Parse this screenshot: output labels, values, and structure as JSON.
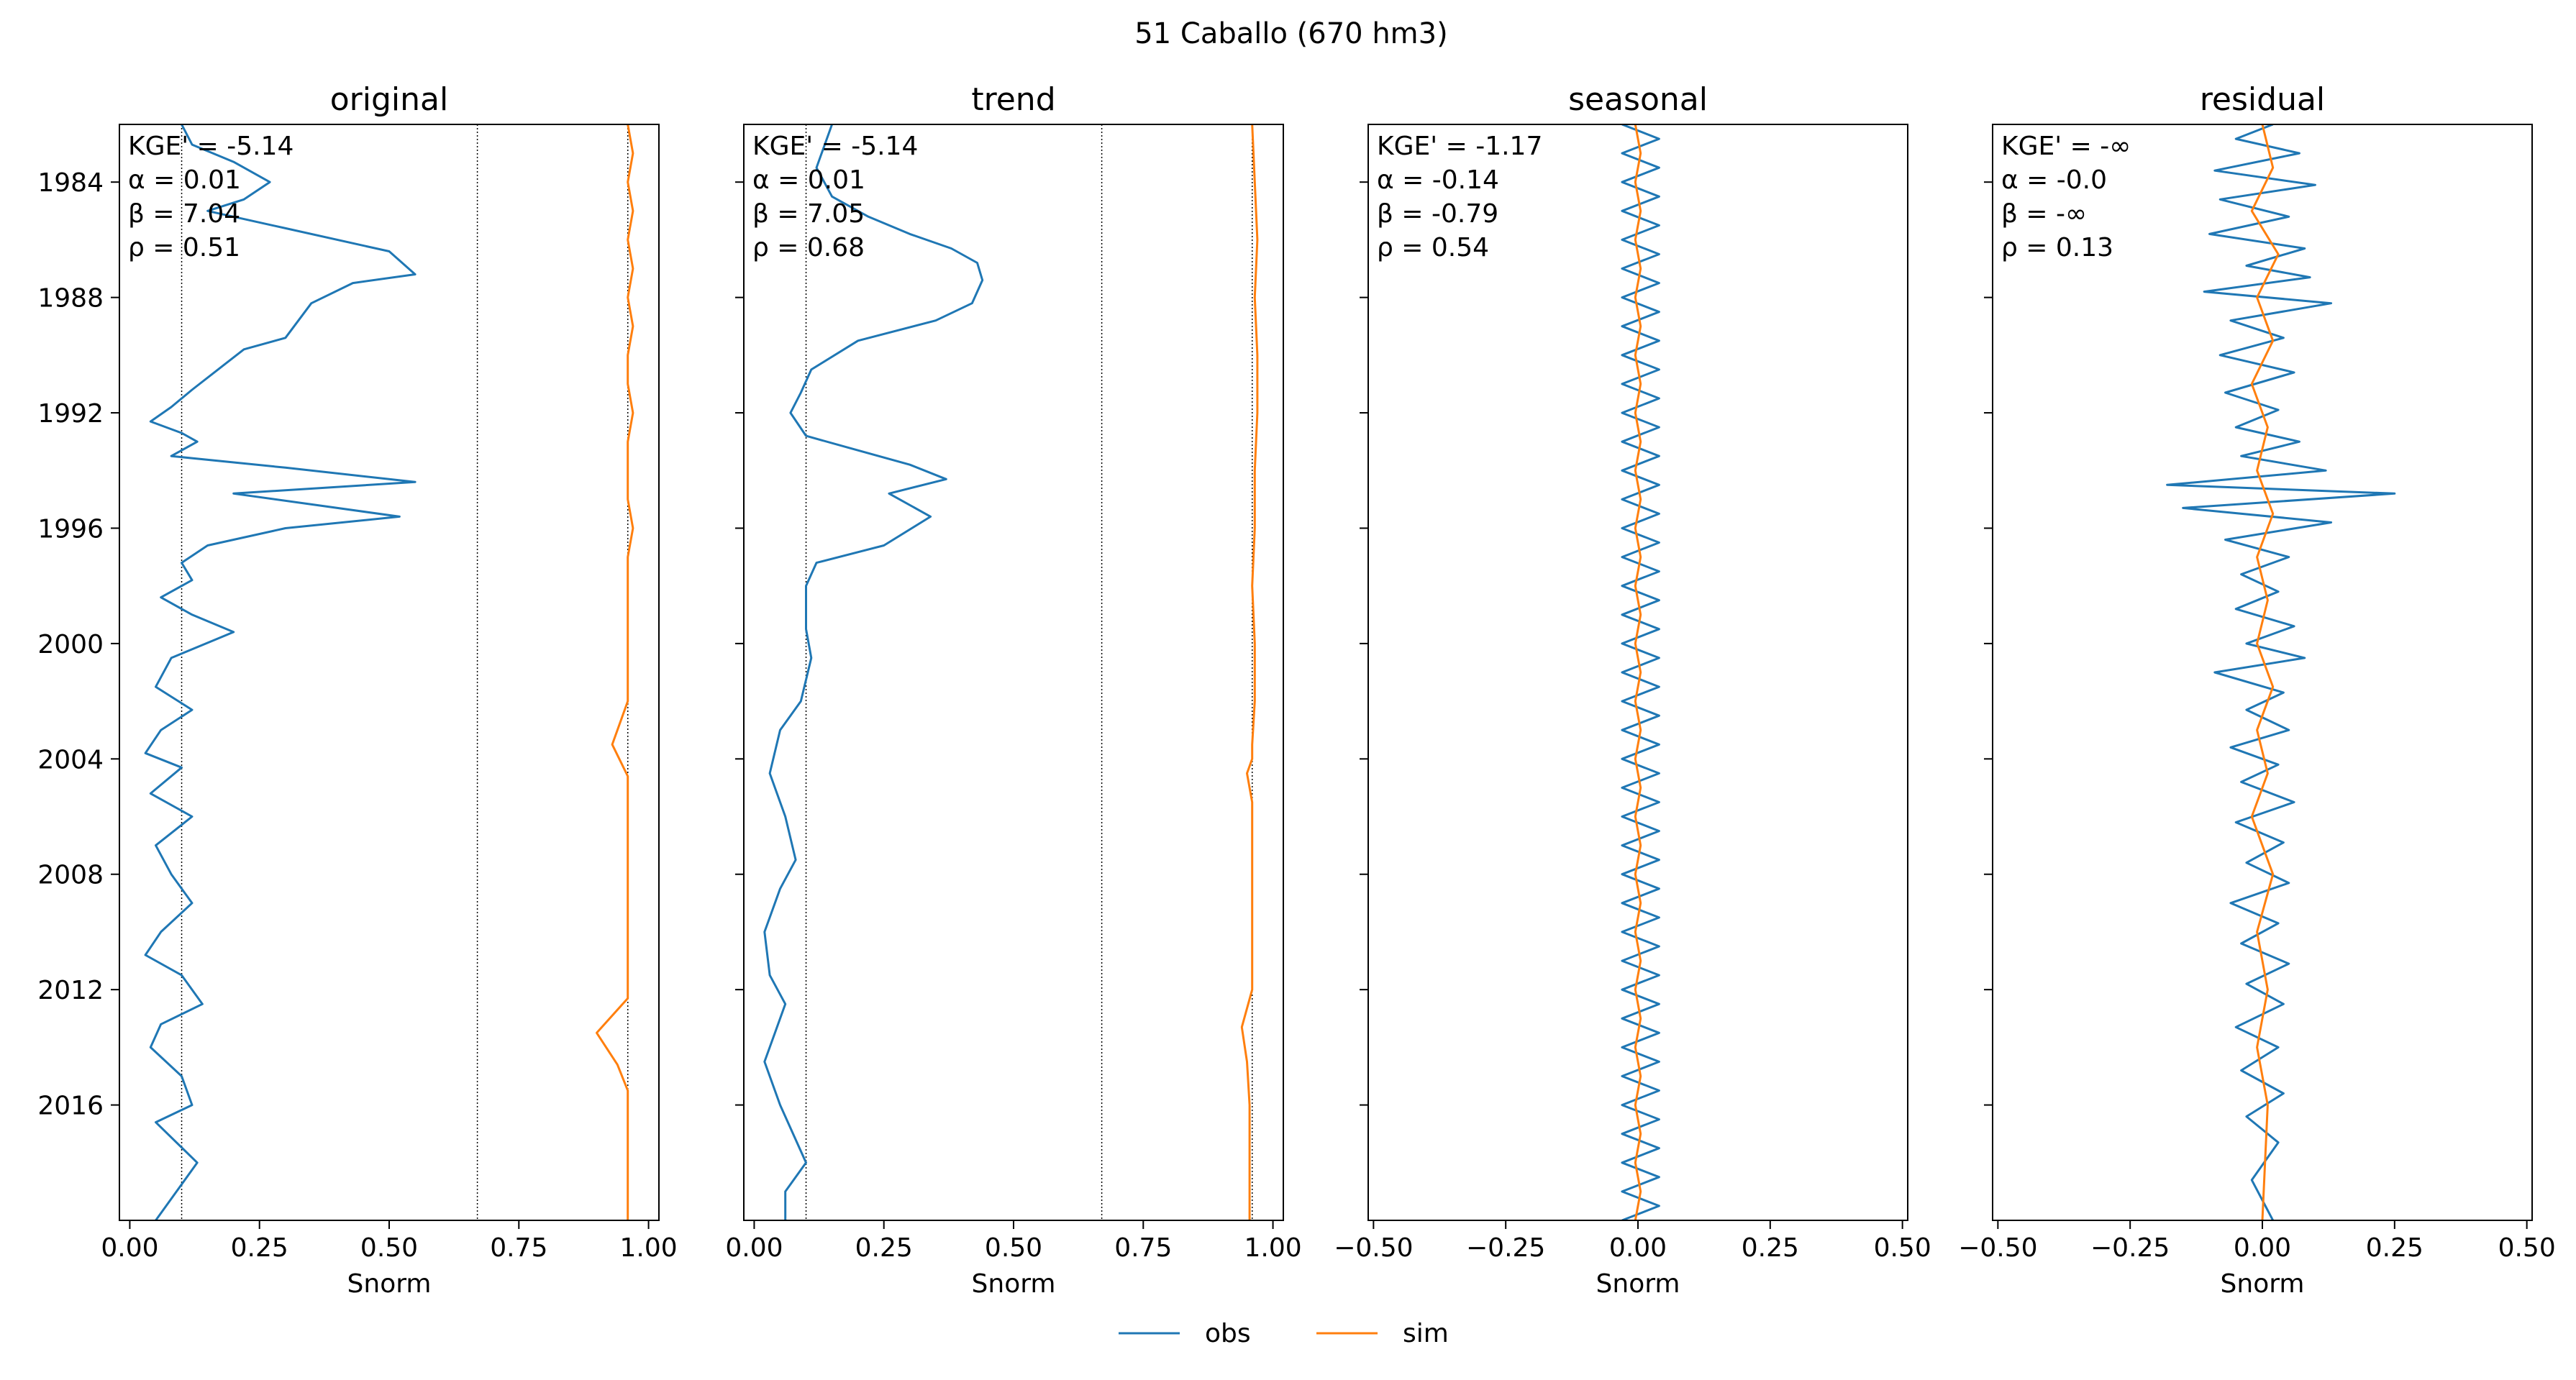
{
  "figure": {
    "title": "51  Caballo (670 hm3)",
    "legend": [
      {
        "label": "obs",
        "color": "#1f77b4"
      },
      {
        "label": "sim",
        "color": "#ff7f0e"
      }
    ],
    "colors": {
      "obs": "#1f77b4",
      "sim": "#ff7f0e",
      "obs_light": "#a9cbe3"
    }
  },
  "chart_data": [
    {
      "type": "line",
      "title": "original",
      "xlabel": "Snorm",
      "ylabel": "",
      "xlim": [
        -0.02,
        1.02
      ],
      "ylim": [
        1982.0,
        2020.0
      ],
      "xticks": [
        0.0,
        0.25,
        0.5,
        0.75,
        1.0
      ],
      "xtick_labels": [
        "0.00",
        "0.25",
        "0.50",
        "0.75",
        "1.00"
      ],
      "yticks": [
        1984,
        1988,
        1992,
        1996,
        2000,
        2004,
        2008,
        2012,
        2016
      ],
      "ytick_labels": [
        "1984",
        "1988",
        "1992",
        "1996",
        "2000",
        "2004",
        "2008",
        "2012",
        "2016"
      ],
      "reference_lines_x": [
        0.1,
        0.67,
        0.96
      ],
      "stats": [
        "KGE' = -5.14",
        "α = 0.01",
        "β = 7.04",
        "ρ = 0.51"
      ],
      "series": [
        {
          "name": "obs",
          "x": [
            0.1,
            0.12,
            0.2,
            0.27,
            0.22,
            0.15,
            0.3,
            0.5,
            0.55,
            0.43,
            0.35,
            0.3,
            0.22,
            0.17,
            0.12,
            0.08,
            0.04,
            0.1,
            0.13,
            0.08,
            0.3,
            0.55,
            0.2,
            0.52,
            0.3,
            0.15,
            0.1,
            0.12,
            0.06,
            0.12,
            0.2,
            0.08,
            0.05,
            0.12,
            0.06,
            0.03,
            0.1,
            0.04,
            0.12,
            0.05,
            0.08,
            0.12,
            0.06,
            0.03,
            0.1,
            0.14,
            0.06,
            0.04,
            0.1,
            0.12,
            0.05,
            0.13,
            0.05
          ],
          "y": [
            1982.0,
            1982.7,
            1983.3,
            1984.0,
            1984.6,
            1985.0,
            1985.6,
            1986.4,
            1987.2,
            1987.5,
            1988.2,
            1989.4,
            1989.8,
            1990.5,
            1991.2,
            1991.8,
            1992.3,
            1992.7,
            1993.0,
            1993.5,
            1993.9,
            1994.4,
            1994.8,
            1995.6,
            1996.0,
            1996.6,
            1997.2,
            1997.8,
            1998.4,
            1999.0,
            1999.6,
            2000.5,
            2001.5,
            2002.3,
            2003.0,
            2003.8,
            2004.3,
            2005.2,
            2006.0,
            2007.0,
            2008.0,
            2009.0,
            2010.0,
            2010.8,
            2011.5,
            2012.5,
            2013.2,
            2014.0,
            2015.0,
            2016.0,
            2016.6,
            2018.0,
            2020.0
          ]
        },
        {
          "name": "sim",
          "x": [
            0.96,
            0.97,
            0.96,
            0.97,
            0.96,
            0.97,
            0.96,
            0.97,
            0.96,
            0.96,
            0.97,
            0.96,
            0.96,
            0.96,
            0.97,
            0.96,
            0.96,
            0.96,
            0.93,
            0.96,
            0.96,
            0.96,
            0.96,
            0.96,
            0.9,
            0.94,
            0.96,
            0.96,
            0.96,
            0.96
          ],
          "y": [
            1982.0,
            1983.0,
            1984.0,
            1985.0,
            1986.0,
            1987.0,
            1988.0,
            1989.0,
            1990.0,
            1991.0,
            1992.0,
            1993.0,
            1994.0,
            1995.0,
            1996.0,
            1997.0,
            1999.0,
            2002.0,
            2003.5,
            2004.6,
            2006.0,
            2009.0,
            2011.0,
            2012.3,
            2013.5,
            2014.6,
            2015.5,
            2016.5,
            2018.0,
            2020.0
          ]
        }
      ]
    },
    {
      "type": "line",
      "title": "trend",
      "xlabel": "Snorm",
      "ylabel": "",
      "xlim": [
        -0.02,
        1.02
      ],
      "ylim": [
        1982.0,
        2020.0
      ],
      "xticks": [
        0.0,
        0.25,
        0.5,
        0.75,
        1.0
      ],
      "xtick_labels": [
        "0.00",
        "0.25",
        "0.50",
        "0.75",
        "1.00"
      ],
      "yticks": [
        1984,
        1988,
        1992,
        1996,
        2000,
        2004,
        2008,
        2012,
        2016
      ],
      "ytick_labels": [
        "",
        "",
        "",
        "",
        "",
        "",
        "",
        "",
        ""
      ],
      "reference_lines_x": [
        0.1,
        0.67,
        0.96
      ],
      "stats": [
        "KGE' = -5.14",
        "α = 0.01",
        "β = 7.05",
        "ρ = 0.68"
      ],
      "series": [
        {
          "name": "obs",
          "x": [
            0.15,
            0.12,
            0.15,
            0.22,
            0.3,
            0.38,
            0.43,
            0.44,
            0.42,
            0.35,
            0.2,
            0.11,
            0.09,
            0.07,
            0.1,
            0.18,
            0.3,
            0.37,
            0.26,
            0.34,
            0.25,
            0.12,
            0.1,
            0.1,
            0.11,
            0.09,
            0.05,
            0.03,
            0.06,
            0.08,
            0.05,
            0.02,
            0.03,
            0.06,
            0.04,
            0.02,
            0.05,
            0.1,
            0.06,
            0.06
          ],
          "y": [
            1982.0,
            1983.5,
            1984.5,
            1985.2,
            1985.8,
            1986.3,
            1986.8,
            1987.4,
            1988.2,
            1988.8,
            1989.5,
            1990.5,
            1991.3,
            1992.0,
            1992.8,
            1993.2,
            1993.8,
            1994.3,
            1994.8,
            1995.6,
            1996.6,
            1997.2,
            1998.0,
            1999.5,
            2000.5,
            2002.0,
            2003.0,
            2004.5,
            2006.0,
            2007.5,
            2008.5,
            2010.0,
            2011.5,
            2012.5,
            2013.5,
            2014.5,
            2016.0,
            2018.0,
            2019.0,
            2020.0
          ]
        },
        {
          "name": "sim",
          "x": [
            0.96,
            0.965,
            0.97,
            0.965,
            0.97,
            0.97,
            0.965,
            0.965,
            0.96,
            0.965,
            0.965,
            0.96,
            0.96,
            0.95,
            0.96,
            0.96,
            0.96,
            0.94,
            0.95,
            0.955,
            0.955,
            0.955
          ],
          "y": [
            1982.0,
            1984.0,
            1986.0,
            1988.0,
            1990.0,
            1992.0,
            1994.0,
            1996.0,
            1998.0,
            2000.0,
            2002.0,
            2003.5,
            2004.0,
            2004.5,
            2005.5,
            2008.0,
            2012.0,
            2013.3,
            2014.5,
            2016.0,
            2018.0,
            2020.0
          ]
        }
      ]
    },
    {
      "type": "line",
      "title": "seasonal",
      "xlabel": "Snorm",
      "ylabel": "",
      "xlim": [
        -0.51,
        0.51
      ],
      "ylim": [
        1982.0,
        2020.0
      ],
      "xticks": [
        -0.5,
        -0.25,
        0.0,
        0.25,
        0.5
      ],
      "xtick_labels": [
        "−0.50",
        "−0.25",
        "0.00",
        "0.25",
        "0.50"
      ],
      "yticks": [
        1984,
        1988,
        1992,
        1996,
        2000,
        2004,
        2008,
        2012,
        2016
      ],
      "ytick_labels": [
        "",
        "",
        "",
        "",
        "",
        "",
        "",
        "",
        ""
      ],
      "reference_lines_x": [],
      "stats": [
        "KGE' = -1.17",
        "α = -0.14",
        "β = -0.79",
        "ρ = 0.54"
      ],
      "series": [
        {
          "name": "obs",
          "x": [
            -0.03,
            0.04,
            -0.03,
            0.04,
            -0.03,
            0.04,
            -0.03,
            0.04,
            -0.03,
            0.04,
            -0.03,
            0.04,
            -0.03,
            0.04,
            -0.03,
            0.04,
            -0.03,
            0.04,
            -0.03,
            0.04,
            -0.03,
            0.04,
            -0.03,
            0.04,
            -0.03,
            0.04,
            -0.03,
            0.04,
            -0.03,
            0.04,
            -0.03,
            0.04,
            -0.03,
            0.04,
            -0.03,
            0.04,
            -0.03,
            0.04,
            -0.03,
            0.04,
            -0.03,
            0.04,
            -0.03,
            0.04,
            -0.03,
            0.04,
            -0.03,
            0.04,
            -0.03,
            0.04,
            -0.03,
            0.04,
            -0.03,
            0.04,
            -0.03,
            0.04,
            -0.03,
            0.04,
            -0.03,
            0.04,
            -0.03,
            0.04,
            -0.03,
            0.04,
            -0.03,
            0.04,
            -0.03,
            0.04,
            -0.03,
            0.04,
            -0.03,
            0.04,
            -0.03,
            0.04,
            -0.03,
            0.04,
            -0.03
          ],
          "y": [
            1982.0,
            1982.5,
            1983.0,
            1983.5,
            1984.0,
            1984.5,
            1985.0,
            1985.5,
            1986.0,
            1986.5,
            1987.0,
            1987.5,
            1988.0,
            1988.5,
            1989.0,
            1989.5,
            1990.0,
            1990.5,
            1991.0,
            1991.5,
            1992.0,
            1992.5,
            1993.0,
            1993.5,
            1994.0,
            1994.5,
            1995.0,
            1995.5,
            1996.0,
            1996.5,
            1997.0,
            1997.5,
            1998.0,
            1998.5,
            1999.0,
            1999.5,
            2000.0,
            2000.5,
            2001.0,
            2001.5,
            2002.0,
            2002.5,
            2003.0,
            2003.5,
            2004.0,
            2004.5,
            2005.0,
            2005.5,
            2006.0,
            2006.5,
            2007.0,
            2007.5,
            2008.0,
            2008.5,
            2009.0,
            2009.5,
            2010.0,
            2010.5,
            2011.0,
            2011.5,
            2012.0,
            2012.5,
            2013.0,
            2013.5,
            2014.0,
            2014.5,
            2015.0,
            2015.5,
            2016.0,
            2016.5,
            2017.0,
            2017.5,
            2018.0,
            2018.5,
            2019.0,
            2019.5,
            2020.0
          ]
        },
        {
          "name": "sim",
          "x": [
            -0.005,
            0.005,
            -0.005,
            0.005,
            -0.005,
            0.005,
            -0.005,
            0.005,
            -0.005,
            0.005,
            -0.005,
            0.005,
            -0.005,
            0.005,
            -0.005,
            0.005,
            -0.005,
            0.005,
            -0.005,
            0.005,
            -0.005,
            0.005,
            -0.005,
            0.005,
            -0.005,
            0.005,
            -0.005,
            0.005,
            -0.005,
            0.005,
            -0.005,
            0.005,
            -0.005,
            0.005,
            -0.005,
            0.005,
            -0.005,
            0.005,
            -0.005
          ],
          "y": [
            1982.0,
            1983.0,
            1984.0,
            1985.0,
            1986.0,
            1987.0,
            1988.0,
            1989.0,
            1990.0,
            1991.0,
            1992.0,
            1993.0,
            1994.0,
            1995.0,
            1996.0,
            1997.0,
            1998.0,
            1999.0,
            2000.0,
            2001.0,
            2002.0,
            2003.0,
            2004.0,
            2005.0,
            2006.0,
            2007.0,
            2008.0,
            2009.0,
            2010.0,
            2011.0,
            2012.0,
            2013.0,
            2014.0,
            2015.0,
            2016.0,
            2017.0,
            2018.0,
            2019.0,
            2020.0
          ]
        }
      ]
    },
    {
      "type": "line",
      "title": "residual",
      "xlabel": "Snorm",
      "ylabel": "",
      "xlim": [
        -0.51,
        0.51
      ],
      "ylim": [
        1982.0,
        2020.0
      ],
      "xticks": [
        -0.5,
        -0.25,
        0.0,
        0.25,
        0.5
      ],
      "xtick_labels": [
        "−0.50",
        "−0.25",
        "0.00",
        "0.25",
        "0.50"
      ],
      "yticks": [
        1984,
        1988,
        1992,
        1996,
        2000,
        2004,
        2008,
        2012,
        2016
      ],
      "ytick_labels": [
        "",
        "",
        "",
        "",
        "",
        "",
        "",
        "",
        ""
      ],
      "reference_lines_x": [],
      "stats": [
        "KGE' = -∞",
        "α = -0.0",
        "β = -∞",
        "ρ = 0.13"
      ],
      "series": [
        {
          "name": "obs",
          "x": [
            0.02,
            -0.05,
            0.07,
            -0.09,
            0.1,
            -0.08,
            0.05,
            -0.1,
            0.08,
            -0.03,
            0.09,
            -0.11,
            0.13,
            -0.06,
            0.04,
            -0.08,
            0.06,
            -0.07,
            0.03,
            -0.05,
            0.07,
            -0.04,
            0.12,
            -0.18,
            0.25,
            -0.15,
            0.13,
            -0.07,
            0.05,
            -0.04,
            0.03,
            -0.05,
            0.06,
            -0.03,
            0.08,
            -0.09,
            0.04,
            -0.03,
            0.05,
            -0.06,
            0.03,
            -0.04,
            0.06,
            -0.05,
            0.04,
            -0.03,
            0.05,
            -0.06,
            0.03,
            -0.04,
            0.05,
            -0.03,
            0.04,
            -0.05,
            0.03,
            -0.04,
            0.04,
            -0.03,
            0.03,
            -0.02,
            0.02
          ],
          "y": [
            1982.0,
            1982.5,
            1983.0,
            1983.6,
            1984.1,
            1984.6,
            1985.2,
            1985.8,
            1986.3,
            1986.9,
            1987.3,
            1987.8,
            1988.2,
            1988.8,
            1989.4,
            1990.0,
            1990.6,
            1991.3,
            1991.9,
            1992.5,
            1993.0,
            1993.5,
            1994.0,
            1994.5,
            1994.8,
            1995.3,
            1995.8,
            1996.4,
            1997.0,
            1997.6,
            1998.2,
            1998.8,
            1999.4,
            2000.0,
            2000.5,
            2001.0,
            2001.7,
            2002.3,
            2003.0,
            2003.6,
            2004.2,
            2004.8,
            2005.5,
            2006.2,
            2006.9,
            2007.6,
            2008.3,
            2009.0,
            2009.7,
            2010.4,
            2011.1,
            2011.8,
            2012.5,
            2013.3,
            2014.0,
            2014.8,
            2015.6,
            2016.4,
            2017.3,
            2018.6,
            2020.0
          ]
        },
        {
          "name": "sim",
          "x": [
            0.0,
            0.02,
            -0.02,
            0.03,
            -0.01,
            0.02,
            -0.02,
            0.01,
            -0.01,
            0.02,
            -0.01,
            0.01,
            -0.01,
            0.02,
            -0.01,
            0.01,
            -0.02,
            0.02,
            -0.01,
            0.01,
            -0.01,
            0.01,
            0.0
          ],
          "y": [
            1982.0,
            1983.5,
            1985.0,
            1986.5,
            1988.0,
            1989.5,
            1991.0,
            1992.5,
            1994.0,
            1995.5,
            1997.0,
            1998.5,
            2000.0,
            2001.5,
            2003.0,
            2004.5,
            2006.0,
            2008.0,
            2010.0,
            2012.0,
            2014.0,
            2016.0,
            2020.0
          ]
        }
      ]
    }
  ]
}
